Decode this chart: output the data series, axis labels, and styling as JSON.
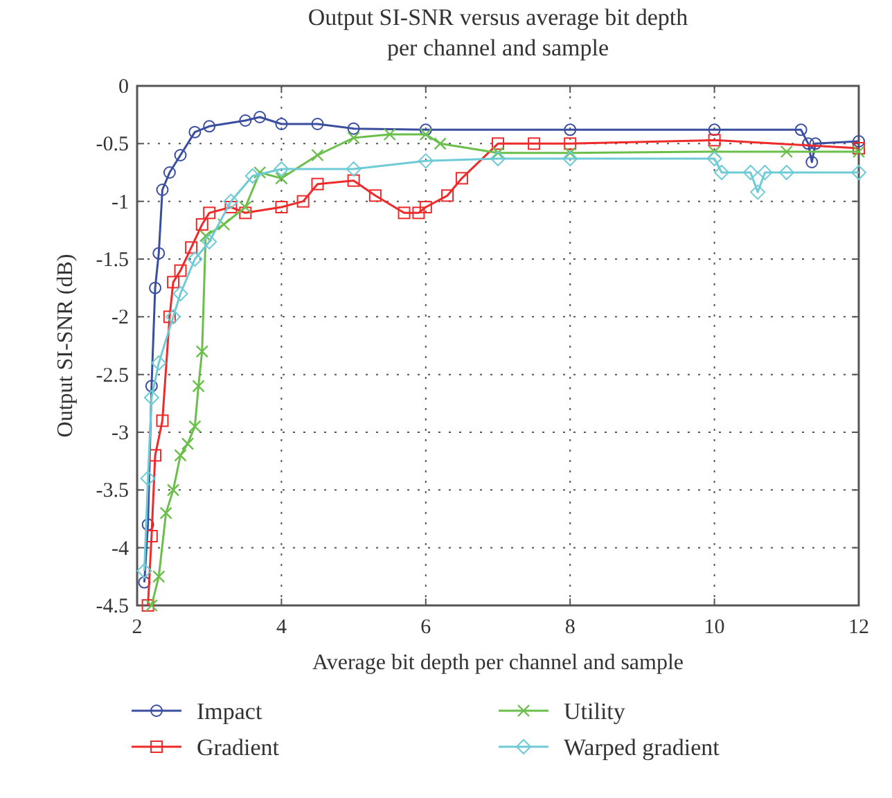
{
  "chart_data": {
    "type": "line",
    "title": "Output SI-SNR versus average bit depth per channel and sample",
    "xlabel": "Average bit depth per channel and sample",
    "ylabel": "Output SI-SNR (dB)",
    "xlim": [
      2,
      12
    ],
    "ylim": [
      -4.5,
      0
    ],
    "xticks": [
      2,
      4,
      6,
      8,
      10,
      12
    ],
    "yticks": [
      -4.5,
      -4,
      -3.5,
      -3,
      -2.5,
      -2,
      -1.5,
      -1,
      -0.5,
      0
    ],
    "grid": true,
    "legend": "bottom",
    "line_style": "solid",
    "series": [
      {
        "name": "Impact",
        "color": "#3a4ea0",
        "marker": "circle",
        "x": [
          2.1,
          2.15,
          2.2,
          2.25,
          2.3,
          2.35,
          2.45,
          2.6,
          2.8,
          3.0,
          3.5,
          3.7,
          4.0,
          4.5,
          5.0,
          6.0,
          8.0,
          10.0,
          11.2,
          11.3,
          11.35,
          11.4,
          12.0
        ],
        "values": [
          -4.3,
          -3.8,
          -2.6,
          -1.75,
          -1.45,
          -0.9,
          -0.75,
          -0.6,
          -0.4,
          -0.35,
          -0.3,
          -0.27,
          -0.33,
          -0.33,
          -0.37,
          -0.38,
          -0.38,
          -0.38,
          -0.38,
          -0.5,
          -0.66,
          -0.5,
          -0.48
        ]
      },
      {
        "name": "Gradient",
        "color": "#ee2a2a",
        "marker": "square",
        "x": [
          2.15,
          2.2,
          2.25,
          2.35,
          2.45,
          2.5,
          2.6,
          2.75,
          2.9,
          3.0,
          3.3,
          3.5,
          4.0,
          4.3,
          4.5,
          5.0,
          5.3,
          5.7,
          5.9,
          6.0,
          6.3,
          6.5,
          7.0,
          7.5,
          8.0,
          10.0,
          12.0
        ],
        "values": [
          -4.5,
          -3.9,
          -3.2,
          -2.9,
          -2.0,
          -1.7,
          -1.6,
          -1.4,
          -1.2,
          -1.1,
          -1.05,
          -1.1,
          -1.05,
          -1.0,
          -0.85,
          -0.82,
          -0.95,
          -1.1,
          -1.1,
          -1.05,
          -0.95,
          -0.8,
          -0.5,
          -0.5,
          -0.5,
          -0.47,
          -0.54
        ]
      },
      {
        "name": "Utility",
        "color": "#6abf4b",
        "marker": "cross",
        "x": [
          2.2,
          2.3,
          2.4,
          2.5,
          2.6,
          2.7,
          2.8,
          2.85,
          2.9,
          2.95,
          3.2,
          3.5,
          3.7,
          4.0,
          4.5,
          5.0,
          5.5,
          6.0,
          6.2,
          7.0,
          8.0,
          10.0,
          11.0,
          12.0
        ],
        "values": [
          -4.5,
          -4.25,
          -3.7,
          -3.5,
          -3.2,
          -3.1,
          -2.95,
          -2.6,
          -2.3,
          -1.3,
          -1.2,
          -1.05,
          -0.75,
          -0.8,
          -0.6,
          -0.45,
          -0.42,
          -0.42,
          -0.5,
          -0.58,
          -0.58,
          -0.57,
          -0.57,
          -0.57
        ]
      },
      {
        "name": "Warped gradient",
        "color": "#6ecbd6",
        "marker": "diamond",
        "x": [
          2.1,
          2.15,
          2.2,
          2.3,
          2.5,
          2.6,
          2.8,
          3.0,
          3.3,
          3.6,
          4.0,
          5.0,
          6.0,
          7.0,
          8.0,
          10.0,
          10.1,
          10.5,
          10.6,
          10.7,
          11.0,
          12.0
        ],
        "values": [
          -4.2,
          -3.4,
          -2.7,
          -2.4,
          -2.0,
          -1.8,
          -1.5,
          -1.35,
          -1.0,
          -0.78,
          -0.72,
          -0.72,
          -0.65,
          -0.63,
          -0.63,
          -0.63,
          -0.75,
          -0.75,
          -0.92,
          -0.75,
          -0.75,
          -0.75
        ]
      }
    ]
  }
}
